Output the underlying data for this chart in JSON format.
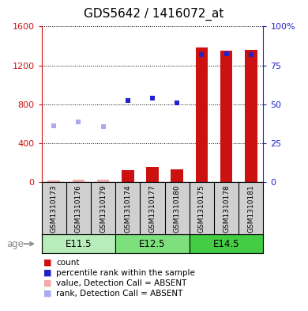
{
  "title": "GDS5642 / 1416072_at",
  "samples": [
    "GSM1310173",
    "GSM1310176",
    "GSM1310179",
    "GSM1310174",
    "GSM1310177",
    "GSM1310180",
    "GSM1310175",
    "GSM1310178",
    "GSM1310181"
  ],
  "groups": [
    {
      "label": "E11.5",
      "color_light": "#ccf5cc",
      "color_dark": "#99ee99"
    },
    {
      "label": "E12.5",
      "color_light": "#99ee99",
      "color_dark": "#66dd66"
    },
    {
      "label": "E14.5",
      "color_light": "#55dd55",
      "color_dark": "#33cc33"
    }
  ],
  "group_colors": [
    "#b8edbb",
    "#7de07d",
    "#44cc44"
  ],
  "count_values": [
    18,
    20,
    22,
    120,
    150,
    130,
    1380,
    1350,
    1360
  ],
  "count_absent": [
    true,
    true,
    true,
    false,
    false,
    false,
    false,
    false,
    false
  ],
  "percentile_values": [
    null,
    null,
    null,
    52.5,
    54.0,
    51.0,
    82.0,
    82.5,
    82.0
  ],
  "percentile_absent": [
    36.0,
    38.5,
    35.5,
    null,
    null,
    null,
    null,
    null,
    null
  ],
  "ylim_left": [
    0,
    1600
  ],
  "ylim_right": [
    0,
    100
  ],
  "yticks_left": [
    0,
    400,
    800,
    1200,
    1600
  ],
  "yticks_right": [
    0,
    25,
    50,
    75,
    100
  ],
  "color_count": "#cc1111",
  "color_rank": "#2222cc",
  "color_count_absent": "#f0aaaa",
  "color_rank_absent": "#aaaaee",
  "title_fontsize": 11,
  "tick_fontsize": 8,
  "legend_fontsize": 8,
  "bar_width": 0.5
}
